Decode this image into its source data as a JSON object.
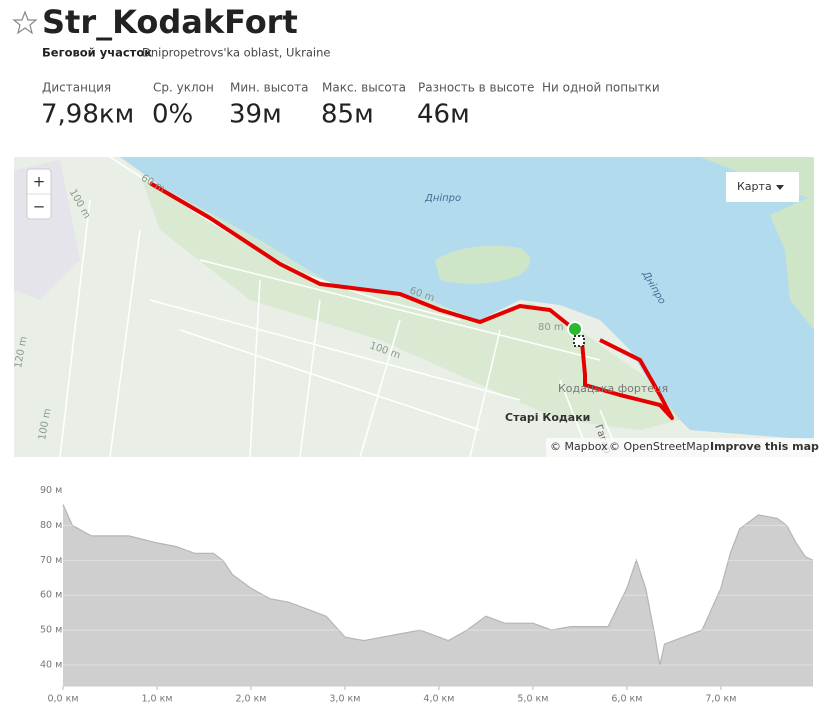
{
  "header": {
    "title": "Str_KodakFort",
    "kind": "Беговой участок",
    "location": "Dnipropetrovs'ka oblast, Ukraine"
  },
  "stats": [
    {
      "label": "Дистанция",
      "value": "7,98км"
    },
    {
      "label": "Ср. уклон",
      "value": "0%"
    },
    {
      "label": "Мин. высота",
      "value": "39м"
    },
    {
      "label": "Макс. высота",
      "value": "85м"
    },
    {
      "label": "Разность в высоте",
      "value": "46м"
    },
    {
      "label": "Ни одной попытки"
    }
  ],
  "map": {
    "zoom_in": "+",
    "zoom_out": "−",
    "style_button": "Карта",
    "labels": [
      "Дніпро",
      "Дніпро",
      "60 m",
      "60 m",
      "80 m",
      "100 m",
      "100 m",
      "120 m",
      "100 m",
      "Кодацька фортеця",
      "Старі Кодаки",
      "Гагар"
    ],
    "attribution": [
      "© Mapbox",
      "© OpenStreetMap",
      "Improve this map"
    ]
  },
  "chart_data": {
    "type": "area",
    "x": [
      0,
      0.1,
      0.3,
      0.5,
      0.7,
      1.0,
      1.2,
      1.4,
      1.6,
      1.7,
      1.8,
      2.0,
      2.2,
      2.4,
      2.6,
      2.8,
      3.0,
      3.2,
      3.4,
      3.6,
      3.8,
      4.1,
      4.3,
      4.5,
      4.7,
      5.0,
      5.2,
      5.4,
      5.6,
      5.8,
      6.0,
      6.1,
      6.2,
      6.3,
      6.35,
      6.4,
      6.6,
      6.8,
      7.0,
      7.1,
      7.2,
      7.4,
      7.6,
      7.7,
      7.8,
      7.9,
      7.98
    ],
    "values": [
      86,
      80,
      77,
      77,
      77,
      75,
      74,
      72,
      72,
      70,
      66,
      62,
      59,
      58,
      56,
      54,
      48,
      47,
      48,
      49,
      50,
      47,
      50,
      54,
      52,
      52,
      50,
      51,
      51,
      51,
      62,
      70,
      62,
      48,
      40,
      46,
      48,
      50,
      62,
      72,
      79,
      83,
      82,
      80,
      75,
      71,
      70
    ],
    "color": "#cfcfcf",
    "xlim": [
      0,
      7.98
    ],
    "ylim": [
      34,
      91
    ],
    "xticks": [
      {
        "value": 0,
        "label": "0,0 км"
      },
      {
        "value": 1,
        "label": "1,0 км"
      },
      {
        "value": 2,
        "label": "2,0 км"
      },
      {
        "value": 3,
        "label": "3,0 км"
      },
      {
        "value": 4,
        "label": "4,0 км"
      },
      {
        "value": 5,
        "label": "5,0 км"
      },
      {
        "value": 6,
        "label": "6,0 км"
      },
      {
        "value": 7,
        "label": "7,0 км"
      }
    ],
    "yticks": [
      {
        "value": 40,
        "label": "40 м"
      },
      {
        "value": 50,
        "label": "50 м"
      },
      {
        "value": 60,
        "label": "60 м"
      },
      {
        "value": 70,
        "label": "70 м"
      },
      {
        "value": 80,
        "label": "80 м"
      },
      {
        "value": 90,
        "label": "90 м"
      }
    ],
    "grid": true
  }
}
